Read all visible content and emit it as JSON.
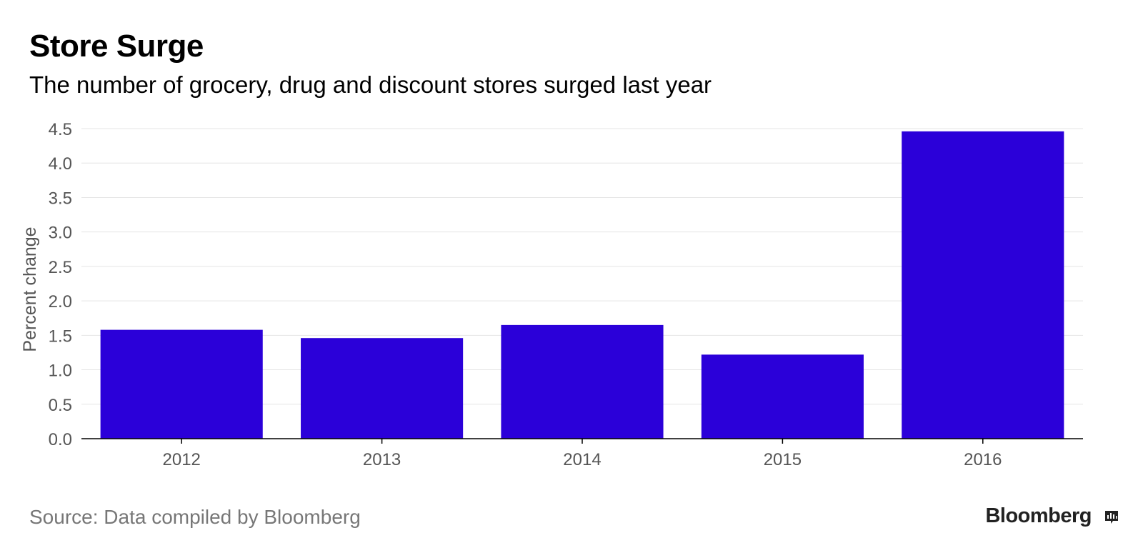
{
  "header": {
    "title": "Store Surge",
    "subtitle": "The number of grocery, drug and discount stores surged last year"
  },
  "footer": {
    "source": "Source: Data compiled by Bloomberg",
    "brand": "Bloomberg",
    "brand_icon": "bloomberg-chart-icon"
  },
  "colors": {
    "bar": "#2B00D9",
    "grid": "#e5e5e5",
    "axis": "#000000",
    "tick_text": "#555555"
  },
  "chart_data": {
    "type": "bar",
    "title": "Store Surge",
    "subtitle": "The number of grocery, drug and discount stores surged last year",
    "xlabel": "",
    "ylabel": "Percent change",
    "categories": [
      "2012",
      "2013",
      "2014",
      "2015",
      "2016"
    ],
    "values": [
      1.58,
      1.46,
      1.65,
      1.22,
      4.46
    ],
    "ylim": [
      0,
      4.5
    ],
    "yticks": [
      "0.0",
      "0.5",
      "1.0",
      "1.5",
      "2.0",
      "2.5",
      "3.0",
      "3.5",
      "4.0",
      "4.5"
    ],
    "grid": true,
    "legend": "none"
  }
}
